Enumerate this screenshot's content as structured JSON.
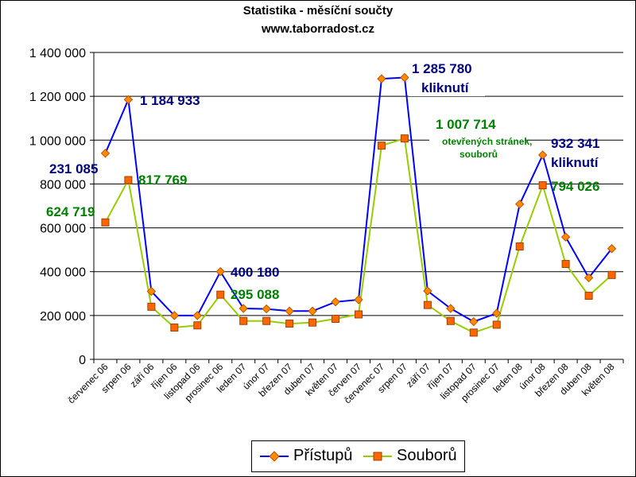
{
  "chart_data": {
    "type": "line",
    "title": "Statistika - měsíční součty",
    "subtitle": "www.taborradost.cz",
    "xlabel": "",
    "ylabel": "",
    "categories": [
      "červenec 06",
      "srpen 06",
      "září 06",
      "říjen 06",
      "listopad 06",
      "prosinec 06",
      "leden 07",
      "únor 07",
      "březen 07",
      "duben 07",
      "květen 07",
      "červen 07",
      "červenec 07",
      "srpen 07",
      "září 07",
      "říjen 07",
      "listopad 07",
      "prosinec 07",
      "leden 08",
      "únor 08",
      "březen 08",
      "duben 08",
      "květen 08"
    ],
    "ylim": [
      0,
      1400000
    ],
    "yticks": [
      0,
      200000,
      400000,
      600000,
      800000,
      1000000,
      1200000,
      1400000
    ],
    "ytick_labels": [
      "0",
      "200 000",
      "400 000",
      "600 000",
      "800 000",
      "1 000 000",
      "1 200 000",
      "1 400 000"
    ],
    "grid": true,
    "legend_position": "bottom",
    "series": [
      {
        "name": "Přístupů",
        "color": "#0000ff",
        "marker": "diamond",
        "marker_color": "#ff8c00",
        "values": [
          940000,
          1184933,
          310000,
          200000,
          200000,
          400180,
          232000,
          230000,
          220000,
          220000,
          262000,
          272000,
          1280000,
          1285780,
          312000,
          232000,
          172000,
          210000,
          708000,
          932341,
          558000,
          372000,
          505000
        ]
      },
      {
        "name": "Souborů",
        "color": "#99cc00",
        "marker": "square",
        "marker_color": "#ff6600",
        "values": [
          624719,
          817769,
          240000,
          145000,
          155000,
          295088,
          175000,
          175000,
          163000,
          168000,
          185000,
          205000,
          975000,
          1007714,
          248000,
          175000,
          122000,
          158000,
          515000,
          794026,
          435000,
          290000,
          385000
        ]
      }
    ],
    "annotations": [
      {
        "text": "231 085",
        "color": "#000080"
      },
      {
        "text": "1 184 933",
        "color": "#000080"
      },
      {
        "text": "400 180",
        "color": "#000080"
      },
      {
        "text": "1 285 780",
        "color": "#000080"
      },
      {
        "text": "kliknutí",
        "color": "#000080"
      },
      {
        "text": "932 341",
        "color": "#000080"
      },
      {
        "text": "kliknutí",
        "color": "#000080"
      },
      {
        "text": "624 719",
        "color": "#008000"
      },
      {
        "text": "817 769",
        "color": "#008000"
      },
      {
        "text": "295 088",
        "color": "#008000"
      },
      {
        "text": "1 007 714",
        "color": "#008000"
      },
      {
        "text": "otevřených stránek,",
        "color": "#008000"
      },
      {
        "text": "souborů",
        "color": "#008000"
      },
      {
        "text": "794 026",
        "color": "#008000"
      }
    ]
  }
}
